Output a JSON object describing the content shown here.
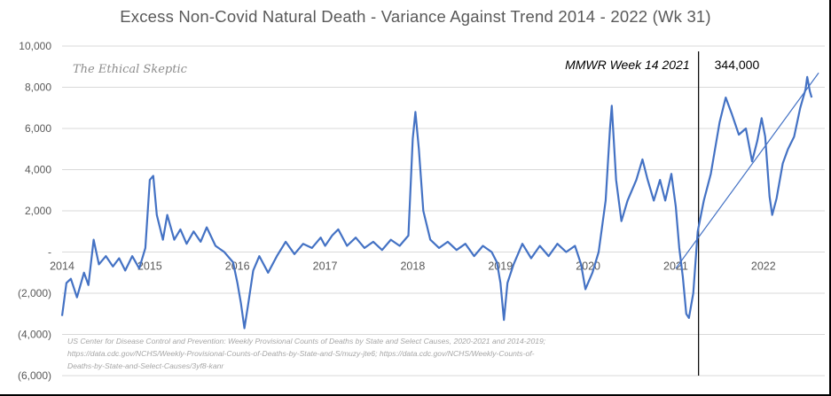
{
  "chart_data": {
    "type": "line",
    "title": "Excess Non-Covid Natural Death - Variance Against Trend  2014 - 2022 (Wk 31)",
    "xlabel": "",
    "ylabel": "",
    "ylim": [
      -6000,
      10000
    ],
    "yticks": [
      {
        "value": 10000,
        "label": "10,000"
      },
      {
        "value": 8000,
        "label": "8,000"
      },
      {
        "value": 6000,
        "label": "6,000"
      },
      {
        "value": 4000,
        "label": "4,000"
      },
      {
        "value": 2000,
        "label": "2,000"
      },
      {
        "value": 0,
        "label": "-"
      },
      {
        "value": -2000,
        "label": "(2,000)"
      },
      {
        "value": -4000,
        "label": "(4,000)"
      },
      {
        "value": -6000,
        "label": "(6,000)"
      }
    ],
    "xticks": [
      {
        "year": 2014,
        "label": "2014"
      },
      {
        "year": 2015,
        "label": "2015"
      },
      {
        "year": 2016,
        "label": "2016"
      },
      {
        "year": 2017,
        "label": "2017"
      },
      {
        "year": 2018,
        "label": "2018"
      },
      {
        "year": 2019,
        "label": "2019"
      },
      {
        "year": 2020,
        "label": "2020"
      },
      {
        "year": 2021,
        "label": "2021"
      },
      {
        "year": 2022,
        "label": "2022"
      }
    ],
    "grid": true,
    "line_color": "#4472c4",
    "series": [
      {
        "name": "",
        "points": [
          [
            2014.0,
            -3100
          ],
          [
            2014.05,
            -1500
          ],
          [
            2014.1,
            -1300
          ],
          [
            2014.17,
            -2200
          ],
          [
            2014.25,
            -1000
          ],
          [
            2014.3,
            -1600
          ],
          [
            2014.36,
            600
          ],
          [
            2014.42,
            -600
          ],
          [
            2014.5,
            -200
          ],
          [
            2014.58,
            -700
          ],
          [
            2014.65,
            -300
          ],
          [
            2014.72,
            -900
          ],
          [
            2014.8,
            -200
          ],
          [
            2014.88,
            -800
          ],
          [
            2014.95,
            200
          ],
          [
            2015.0,
            3500
          ],
          [
            2015.04,
            3700
          ],
          [
            2015.08,
            1800
          ],
          [
            2015.15,
            600
          ],
          [
            2015.2,
            1800
          ],
          [
            2015.28,
            600
          ],
          [
            2015.35,
            1100
          ],
          [
            2015.42,
            400
          ],
          [
            2015.5,
            1000
          ],
          [
            2015.58,
            500
          ],
          [
            2015.65,
            1200
          ],
          [
            2015.75,
            300
          ],
          [
            2015.85,
            0
          ],
          [
            2015.95,
            -500
          ],
          [
            2016.0,
            -1500
          ],
          [
            2016.04,
            -2500
          ],
          [
            2016.08,
            -3700
          ],
          [
            2016.12,
            -2600
          ],
          [
            2016.18,
            -900
          ],
          [
            2016.25,
            -200
          ],
          [
            2016.35,
            -1000
          ],
          [
            2016.45,
            -200
          ],
          [
            2016.55,
            500
          ],
          [
            2016.65,
            -100
          ],
          [
            2016.75,
            400
          ],
          [
            2016.85,
            200
          ],
          [
            2016.95,
            700
          ],
          [
            2017.0,
            300
          ],
          [
            2017.08,
            800
          ],
          [
            2017.15,
            1100
          ],
          [
            2017.25,
            300
          ],
          [
            2017.35,
            700
          ],
          [
            2017.45,
            200
          ],
          [
            2017.55,
            500
          ],
          [
            2017.65,
            100
          ],
          [
            2017.75,
            600
          ],
          [
            2017.85,
            300
          ],
          [
            2017.95,
            800
          ],
          [
            2018.0,
            5500
          ],
          [
            2018.03,
            6800
          ],
          [
            2018.07,
            5000
          ],
          [
            2018.12,
            2000
          ],
          [
            2018.2,
            600
          ],
          [
            2018.3,
            200
          ],
          [
            2018.4,
            500
          ],
          [
            2018.5,
            100
          ],
          [
            2018.6,
            400
          ],
          [
            2018.7,
            -200
          ],
          [
            2018.8,
            300
          ],
          [
            2018.9,
            0
          ],
          [
            2018.96,
            -500
          ],
          [
            2019.0,
            -1500
          ],
          [
            2019.04,
            -3300
          ],
          [
            2019.08,
            -1500
          ],
          [
            2019.15,
            -600
          ],
          [
            2019.25,
            400
          ],
          [
            2019.35,
            -300
          ],
          [
            2019.45,
            300
          ],
          [
            2019.55,
            -200
          ],
          [
            2019.65,
            400
          ],
          [
            2019.75,
            0
          ],
          [
            2019.85,
            300
          ],
          [
            2019.92,
            -600
          ],
          [
            2019.97,
            -1800
          ],
          [
            2020.05,
            -1000
          ],
          [
            2020.12,
            0
          ],
          [
            2020.2,
            2500
          ],
          [
            2020.25,
            6000
          ],
          [
            2020.27,
            7100
          ],
          [
            2020.32,
            3500
          ],
          [
            2020.38,
            1500
          ],
          [
            2020.45,
            2500
          ],
          [
            2020.55,
            3500
          ],
          [
            2020.62,
            4500
          ],
          [
            2020.68,
            3500
          ],
          [
            2020.75,
            2500
          ],
          [
            2020.82,
            3500
          ],
          [
            2020.88,
            2500
          ],
          [
            2020.95,
            3800
          ],
          [
            2021.0,
            2200
          ],
          [
            2021.04,
            200
          ],
          [
            2021.08,
            -1200
          ],
          [
            2021.12,
            -3000
          ],
          [
            2021.15,
            -3200
          ],
          [
            2021.2,
            -2000
          ],
          [
            2021.25,
            1000
          ],
          [
            2021.32,
            2500
          ],
          [
            2021.4,
            3800
          ],
          [
            2021.5,
            6300
          ],
          [
            2021.57,
            7500
          ],
          [
            2021.64,
            6700
          ],
          [
            2021.72,
            5700
          ],
          [
            2021.8,
            6000
          ],
          [
            2021.87,
            4400
          ],
          [
            2021.93,
            5400
          ],
          [
            2021.98,
            6500
          ],
          [
            2022.02,
            5600
          ],
          [
            2022.07,
            2700
          ],
          [
            2022.1,
            1800
          ],
          [
            2022.15,
            2600
          ],
          [
            2022.22,
            4300
          ],
          [
            2022.28,
            5000
          ],
          [
            2022.35,
            5600
          ],
          [
            2022.42,
            7000
          ],
          [
            2022.48,
            7900
          ],
          [
            2022.5,
            8500
          ],
          [
            2022.53,
            7800
          ],
          [
            2022.55,
            7500
          ]
        ]
      }
    ],
    "trend_line": {
      "x1": 2021.0,
      "y1": -800,
      "x2": 2022.63,
      "y2": 8700
    },
    "vline": {
      "x": 2021.26,
      "label": "MMWR Week 14  2021",
      "value_label": "344,000"
    }
  },
  "watermark": "The Ethical Skeptic",
  "source_lines": [
    "US Center for Disease Control and Prevention: Weekly  Provisional Counts of Deaths by State and Select Causes, 2020-2021 and 2014-2019;",
    "https://data.cdc.gov/NCHS/Weekly-Provisional-Counts-of-Deaths-by-State-and-S/muzy-jte6;  https://data.cdc.gov/NCHS/Weekly-Counts-of-",
    "Deaths-by-State-and-Select-Causes/3yf8-kanr"
  ]
}
